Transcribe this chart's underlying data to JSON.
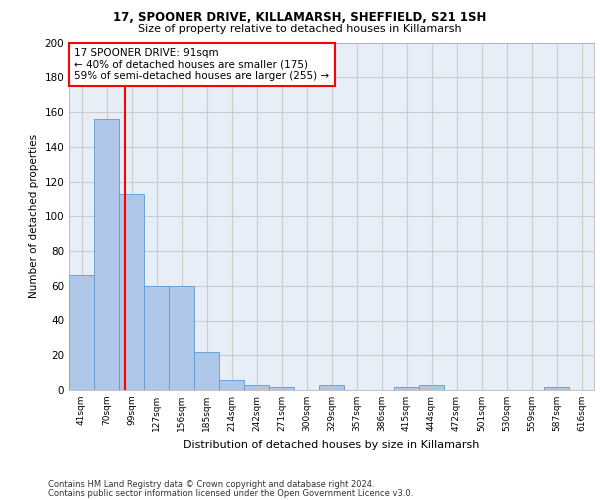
{
  "title1": "17, SPOONER DRIVE, KILLAMARSH, SHEFFIELD, S21 1SH",
  "title2": "Size of property relative to detached houses in Killamarsh",
  "xlabel": "Distribution of detached houses by size in Killamarsh",
  "ylabel": "Number of detached properties",
  "bar_color": "#aec6e8",
  "bar_edge_color": "#5b9bd5",
  "categories": [
    "41sqm",
    "70sqm",
    "99sqm",
    "127sqm",
    "156sqm",
    "185sqm",
    "214sqm",
    "242sqm",
    "271sqm",
    "300sqm",
    "329sqm",
    "357sqm",
    "386sqm",
    "415sqm",
    "444sqm",
    "472sqm",
    "501sqm",
    "530sqm",
    "559sqm",
    "587sqm",
    "616sqm"
  ],
  "values": [
    66,
    156,
    113,
    60,
    60,
    22,
    6,
    3,
    2,
    0,
    3,
    0,
    0,
    2,
    3,
    0,
    0,
    0,
    0,
    2,
    0
  ],
  "ylim": [
    0,
    200
  ],
  "yticks": [
    0,
    20,
    40,
    60,
    80,
    100,
    120,
    140,
    160,
    180,
    200
  ],
  "property_label": "17 SPOONER DRIVE: 91sqm",
  "smaller_pct": 40,
  "smaller_count": 175,
  "larger_pct": 59,
  "larger_count": 255,
  "vline_x_index": 1.75,
  "grid_color": "#cccccc",
  "background_color": "#e8eef8",
  "footer1": "Contains HM Land Registry data © Crown copyright and database right 2024.",
  "footer2": "Contains public sector information licensed under the Open Government Licence v3.0."
}
